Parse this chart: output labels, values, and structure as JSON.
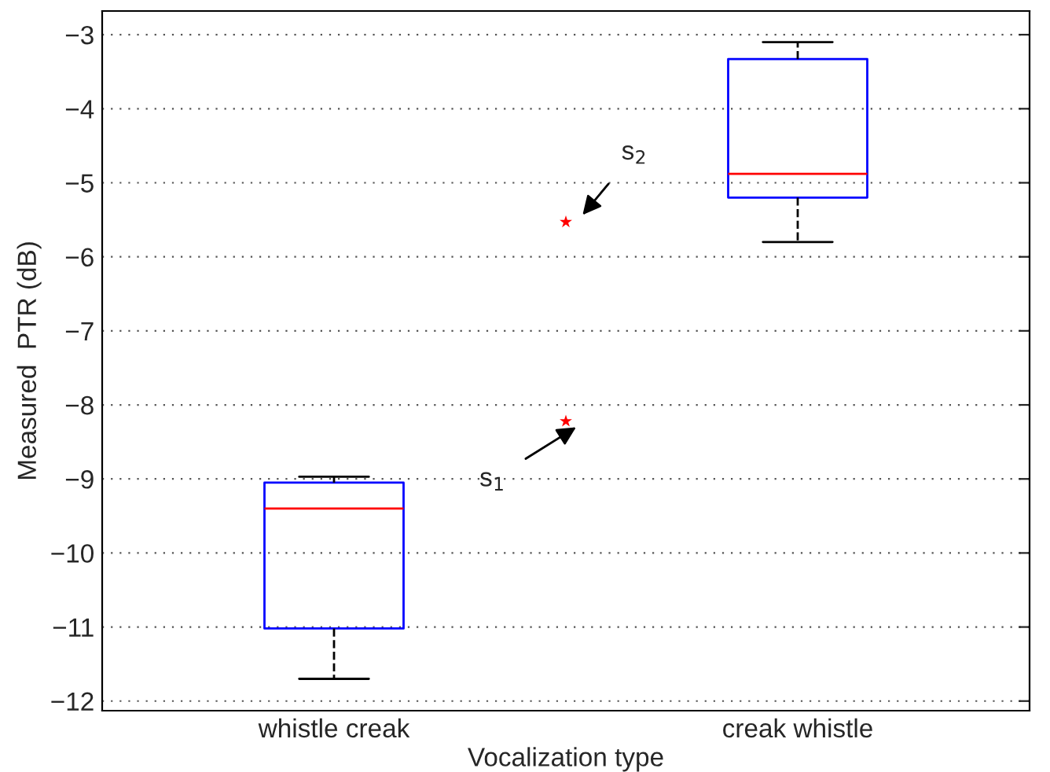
{
  "chart_data": {
    "type": "box",
    "xlabel": "Vocalization type",
    "ylabel": "Measured  PTR (dB)",
    "categories": [
      "whistle creak",
      null,
      "creak whistle"
    ],
    "boxes": [
      {
        "low": -11.7,
        "q1": -11.02,
        "median": -9.4,
        "q3": -9.05,
        "high": -8.97
      },
      null,
      {
        "low": -5.8,
        "q1": -5.2,
        "median": -4.88,
        "q3": -3.33,
        "high": -3.1
      }
    ],
    "series": [
      {
        "type": "scatter",
        "color": "#ff0000",
        "marker": "star",
        "values": [
          null,
          -5.53,
          null
        ]
      },
      {
        "type": "scatter",
        "color": "#ff0000",
        "marker": "star",
        "values": [
          null,
          -8.22,
          null
        ]
      }
    ],
    "annotations": [
      "s$_{2}$",
      "s$_{1}$"
    ],
    "ylim": [
      -12.13,
      -2.68
    ],
    "yticks": [
      {
        "value": -12,
        "label": "−12"
      },
      {
        "value": -11,
        "label": "−11"
      },
      {
        "value": -10,
        "label": "−10"
      },
      {
        "value": -9,
        "label": "−9"
      },
      {
        "value": -8,
        "label": "−8"
      },
      {
        "value": -7,
        "label": "−7"
      },
      {
        "value": -6,
        "label": "−6"
      },
      {
        "value": -5,
        "label": "−5"
      },
      {
        "value": -4,
        "label": "−4"
      },
      {
        "value": -3,
        "label": "−3"
      }
    ],
    "grid": "y"
  }
}
